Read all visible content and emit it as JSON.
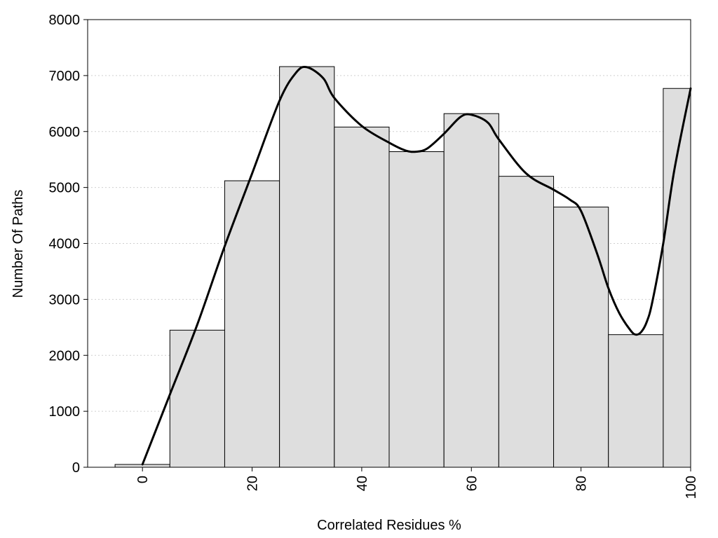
{
  "chart_data": {
    "type": "bar",
    "xlabel": "Correlated Residues %",
    "ylabel": "Number Of Paths",
    "xlim": [
      -10,
      100
    ],
    "ylim": [
      0,
      8000
    ],
    "grid": true,
    "x_ticks": [
      0,
      20,
      40,
      60,
      80,
      100
    ],
    "y_ticks": [
      0,
      1000,
      2000,
      3000,
      4000,
      5000,
      6000,
      7000,
      8000
    ],
    "bin_width": 10,
    "bins": [
      {
        "center": 0,
        "value": 50
      },
      {
        "center": 10,
        "value": 2450
      },
      {
        "center": 20,
        "value": 5120
      },
      {
        "center": 30,
        "value": 7160
      },
      {
        "center": 40,
        "value": 6080
      },
      {
        "center": 50,
        "value": 5640
      },
      {
        "center": 60,
        "value": 6320
      },
      {
        "center": 70,
        "value": 5200
      },
      {
        "center": 80,
        "value": 4650
      },
      {
        "center": 90,
        "value": 2370
      },
      {
        "center": 100,
        "value": 6770
      }
    ],
    "curve": {
      "type": "line",
      "x": [
        0,
        2,
        5,
        10,
        15,
        20,
        25,
        28,
        30,
        33,
        35,
        40,
        45,
        48,
        50,
        52,
        55,
        58,
        60,
        63,
        65,
        70,
        75,
        78,
        80,
        83,
        85,
        87,
        89,
        90,
        91,
        92,
        93,
        95,
        97,
        100
      ],
      "y": [
        50,
        550,
        1300,
        2550,
        3950,
        5250,
        6550,
        7050,
        7150,
        6950,
        6600,
        6100,
        5800,
        5660,
        5640,
        5700,
        5960,
        6260,
        6300,
        6160,
        5860,
        5250,
        4960,
        4780,
        4580,
        3800,
        3200,
        2750,
        2450,
        2370,
        2420,
        2600,
        2950,
        4000,
        5300,
        6770
      ]
    }
  }
}
